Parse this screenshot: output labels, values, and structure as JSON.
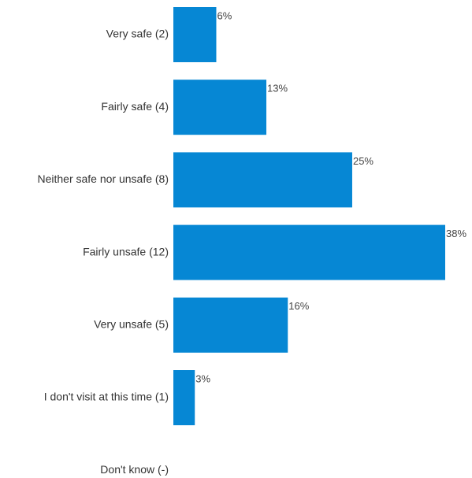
{
  "chart_data": {
    "type": "bar",
    "orientation": "horizontal",
    "categories": [
      "Very safe (2)",
      "Fairly safe (4)",
      "Neither safe nor unsafe (8)",
      "Fairly unsafe (12)",
      "Very unsafe (5)",
      "I don't visit at this time (1)",
      "Don't know (-)"
    ],
    "values": [
      6,
      13,
      25,
      38,
      16,
      3,
      null
    ],
    "value_labels": [
      "6%",
      "13%",
      "25%",
      "38%",
      "16%",
      "3%",
      ""
    ],
    "unit": "%",
    "bar_color": "#0687d4",
    "xlim": [
      0,
      40
    ],
    "grid": false,
    "legend": "none"
  }
}
